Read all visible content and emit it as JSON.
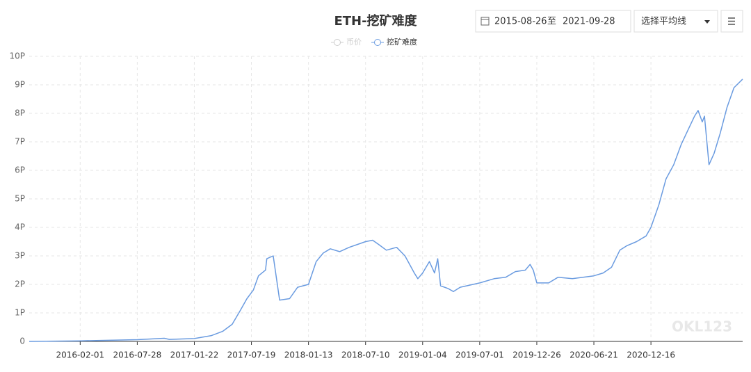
{
  "controls": {
    "start_date": "2015-08-26",
    "to": "至",
    "end_date": "2021-09-28",
    "ma_select": "选择平均线"
  },
  "chart_data": {
    "type": "line",
    "title": "ETH-挖矿难度",
    "watermark": "OKL123",
    "x": [
      "2015-08-26",
      "2016-02-01",
      "2016-07-28",
      "2016-10-20",
      "2016-11-05",
      "2017-01-22",
      "2017-03-15",
      "2017-04-20",
      "2017-05-20",
      "2017-06-15",
      "2017-07-05",
      "2017-07-25",
      "2017-08-10",
      "2017-09-01",
      "2017-09-05",
      "2017-09-25",
      "2017-10-15",
      "2017-11-15",
      "2017-12-10",
      "2018-01-13",
      "2018-02-06",
      "2018-02-28",
      "2018-03-22",
      "2018-04-20",
      "2018-05-20",
      "2018-07-10",
      "2018-08-01",
      "2018-08-20",
      "2018-09-13",
      "2018-10-15",
      "2018-11-10",
      "2018-12-09",
      "2018-12-20",
      "2019-01-04",
      "2019-01-25",
      "2019-02-10",
      "2019-02-20",
      "2019-03-01",
      "2019-03-25",
      "2019-04-10",
      "2019-05-01",
      "2019-07-01",
      "2019-08-15",
      "2019-09-20",
      "2019-10-20",
      "2019-11-20",
      "2019-12-05",
      "2019-12-15",
      "2019-12-26",
      "2020-02-01",
      "2020-03-01",
      "2020-04-15",
      "2020-06-21",
      "2020-07-20",
      "2020-08-15",
      "2020-09-10",
      "2020-10-01",
      "2020-11-01",
      "2020-12-01",
      "2020-12-16",
      "2021-01-10",
      "2021-02-01",
      "2021-02-25",
      "2021-03-20",
      "2021-04-10",
      "2021-05-01",
      "2021-05-12",
      "2021-05-25",
      "2021-06-01",
      "2021-06-15",
      "2021-07-01",
      "2021-07-20",
      "2021-08-10",
      "2021-09-01",
      "2021-09-28"
    ],
    "series": [
      {
        "name": "币价",
        "color": "#cccccc",
        "visible": false,
        "values": [
          null,
          null,
          null,
          null,
          null,
          null,
          null,
          null,
          null,
          null,
          null,
          null,
          null,
          null,
          null,
          null,
          null,
          null,
          null,
          null,
          null,
          null,
          null,
          null,
          null,
          null,
          null,
          null,
          null,
          null,
          null,
          null,
          null,
          null,
          null,
          null,
          null,
          null,
          null,
          null,
          null,
          null,
          null,
          null,
          null,
          null,
          null,
          null,
          null,
          null,
          null,
          null,
          null,
          null,
          null,
          null,
          null,
          null,
          null,
          null,
          null,
          null,
          null,
          null,
          null,
          null,
          null,
          null,
          null,
          null,
          null,
          null,
          null,
          null,
          null
        ]
      },
      {
        "name": "挖矿难度",
        "color": "#6a9be0",
        "visible": true,
        "values": [
          0.0,
          0.02,
          0.06,
          0.11,
          0.07,
          0.1,
          0.2,
          0.35,
          0.6,
          1.1,
          1.5,
          1.8,
          2.3,
          2.5,
          2.9,
          3.0,
          1.45,
          1.5,
          1.9,
          2.0,
          2.8,
          3.1,
          3.25,
          3.15,
          3.3,
          3.5,
          3.55,
          3.4,
          3.2,
          3.3,
          3.0,
          2.4,
          2.2,
          2.4,
          2.8,
          2.4,
          2.9,
          1.95,
          1.85,
          1.75,
          1.9,
          2.05,
          2.2,
          2.25,
          2.45,
          2.5,
          2.7,
          2.5,
          2.05,
          2.05,
          2.25,
          2.2,
          2.3,
          2.4,
          2.6,
          3.2,
          3.35,
          3.5,
          3.7,
          4.0,
          4.8,
          5.7,
          6.2,
          6.9,
          7.4,
          7.9,
          8.1,
          7.7,
          7.9,
          6.2,
          6.6,
          7.3,
          8.2,
          8.9,
          9.2
        ]
      }
    ],
    "xlim": [
      "2015-08-26",
      "2021-09-28"
    ],
    "xticks": [
      "2016-02-01",
      "2016-07-28",
      "2017-01-22",
      "2017-07-19",
      "2018-01-13",
      "2018-07-10",
      "2019-01-04",
      "2019-07-01",
      "2019-12-26",
      "2020-06-21",
      "2020-12-16"
    ],
    "ylim": [
      0,
      10
    ],
    "yticks": [
      0,
      {
        "value": 1,
        "label": "1P"
      },
      {
        "value": 2,
        "label": "2P"
      },
      {
        "value": 3,
        "label": "3P"
      },
      {
        "value": 4,
        "label": "4P"
      },
      {
        "value": 5,
        "label": "5P"
      },
      {
        "value": 6,
        "label": "6P"
      },
      {
        "value": 7,
        "label": "7P"
      },
      {
        "value": 8,
        "label": "8P"
      },
      {
        "value": 9,
        "label": "9P"
      },
      {
        "value": 10,
        "label": "10P"
      }
    ],
    "grid": true
  }
}
